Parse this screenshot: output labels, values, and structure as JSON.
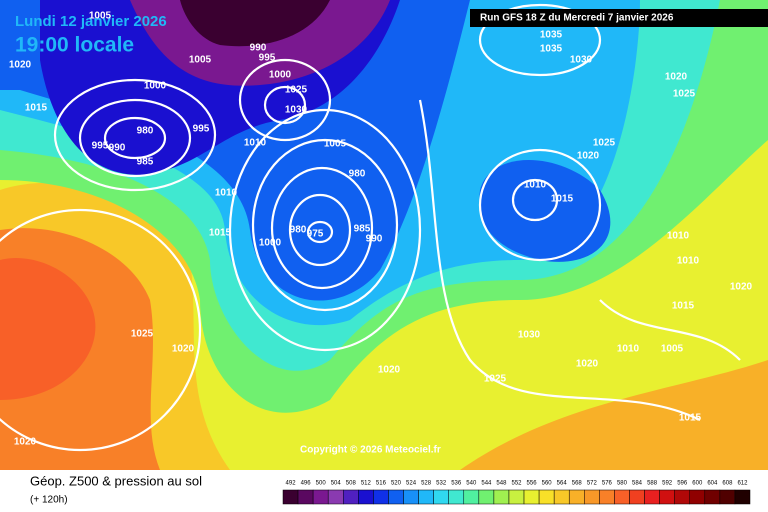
{
  "header": {
    "date": "Lundi 12 janvier 2026",
    "time": "19:00 locale",
    "run": "Run GFS 18 Z du Mercredi 7 janvier 2026"
  },
  "copyright": "Copyright © 2026 Meteociel.fr",
  "footer": {
    "title": "Géop. Z500 & pression au sol",
    "lead": "(+ 120h)"
  },
  "isobar_labels": [
    "1005",
    "990",
    "995",
    "1005",
    "1020",
    "1000",
    "1000",
    "1025",
    "1030",
    "1015",
    "980",
    "995",
    "995",
    "990",
    "985",
    "1010",
    "1005",
    "980",
    "1010",
    "1015",
    "980",
    "975",
    "985",
    "990",
    "1000",
    "1025",
    "1020",
    "1020",
    "1025",
    "1030",
    "1020",
    "1010",
    "1005",
    "1015",
    "1020",
    "1035",
    "1035",
    "1030",
    "1020",
    "1025",
    "1025",
    "1020",
    "1010",
    "1015",
    "1010",
    "1010",
    "1020",
    "1015"
  ],
  "scale": {
    "values": [
      492,
      496,
      500,
      504,
      508,
      512,
      516,
      520,
      524,
      528,
      532,
      536,
      540,
      544,
      548,
      552,
      556,
      560,
      564,
      568,
      572,
      576,
      580,
      584,
      588,
      592,
      596,
      600,
      604,
      608,
      612
    ],
    "colors": [
      "#3a0030",
      "#5a0860",
      "#7a1890",
      "#8a3ab0",
      "#5020c0",
      "#1a10d0",
      "#1030e8",
      "#1060f0",
      "#1890f8",
      "#20b8f8",
      "#30d8f0",
      "#40e8d0",
      "#50f0a0",
      "#70f070",
      "#a0f050",
      "#c8f040",
      "#e8f030",
      "#f8e028",
      "#f8c828",
      "#f8b028",
      "#f89828",
      "#f88028",
      "#f86028",
      "#f04020",
      "#e82020",
      "#d01010",
      "#b00808",
      "#900000",
      "#700000",
      "#500000",
      "#200000"
    ]
  }
}
